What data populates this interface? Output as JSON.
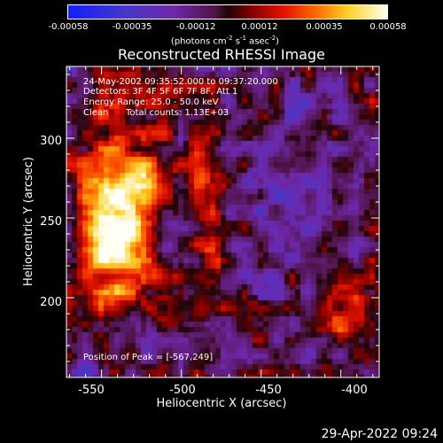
{
  "colorbar": {
    "ticks": [
      "-0.00058",
      "-0.00035",
      "-0.00012",
      "0.00012",
      "0.00035",
      "0.00058"
    ],
    "unit_main": "(photons cm",
    "unit_sup1": "-2",
    "unit_s": " s",
    "unit_sup2": "-1",
    "unit_asec": " asec",
    "unit_sup3": "-2",
    "unit_close": ")",
    "colormap": "RHESSI blue-purple-red-yellow-white"
  },
  "title": "Reconstructed RHESSI Image",
  "annotations": {
    "time_range": "24-May-2002 09:35:52.000 to 09:37:20.000",
    "detectors": "Detectors: 3F 4F 5F 6F 7F 8F, Att 1",
    "energy": "Energy Range: 25.0 - 50.0 keV",
    "clean_label": "Clean",
    "counts": "Total counts: 1.13E+03",
    "peak": "Position of Peak = [-567,249]"
  },
  "axes": {
    "xlabel": "Heliocentric X (arcsec)",
    "ylabel": "Heliocentric Y (arcsec)",
    "xticks": [
      "-550",
      "-500",
      "-450",
      "-400"
    ],
    "yticks": [
      "300",
      "250",
      "200"
    ],
    "xlim": [
      -572,
      -376
    ],
    "ylim": [
      150,
      345
    ],
    "xtick_values": [
      -550,
      -500,
      -450,
      -400
    ],
    "ytick_values": [
      300,
      250,
      200
    ],
    "xminor_step": 10,
    "yminor_step": 10
  },
  "footer": {
    "timestamp": "29-Apr-2022 09:24"
  }
}
